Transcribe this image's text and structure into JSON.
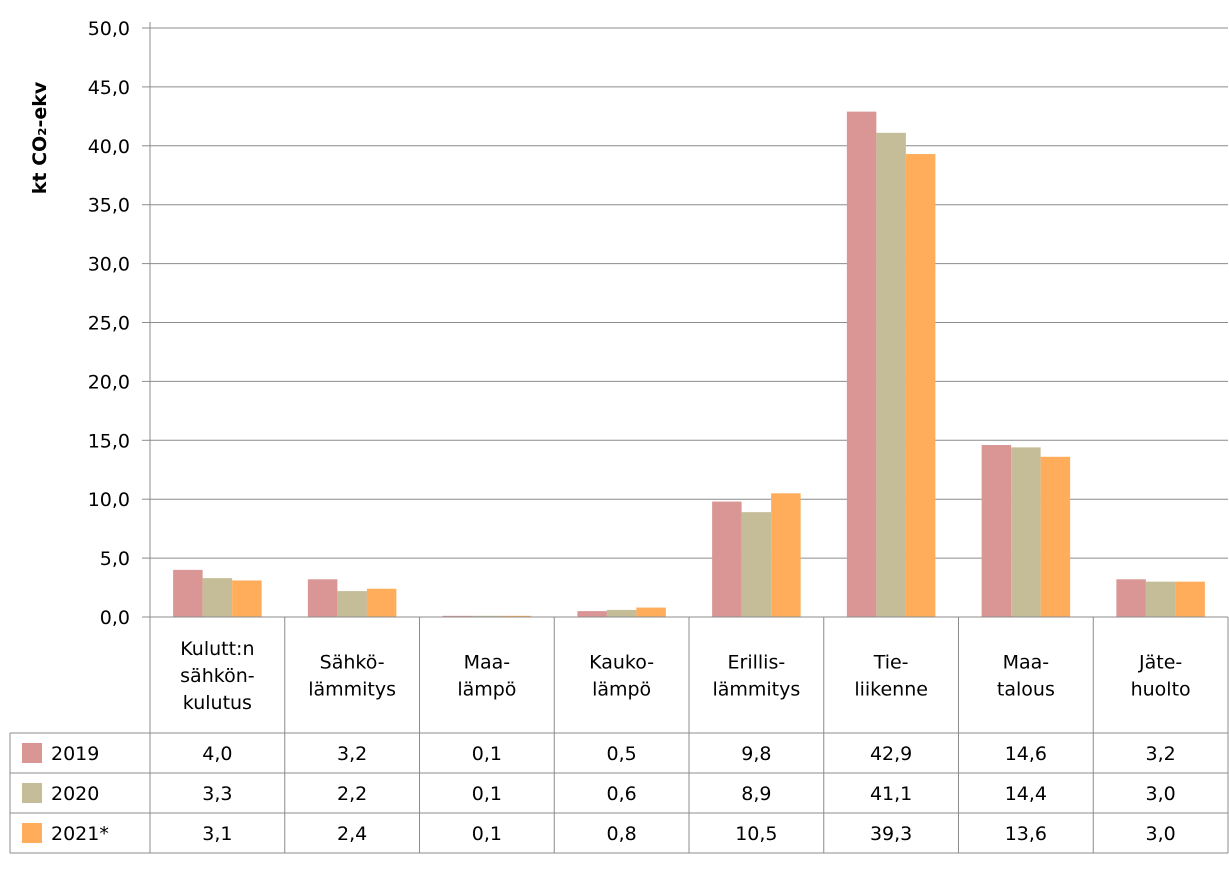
{
  "chart_data": {
    "type": "bar",
    "ylabel": "kt CO₂-ekv",
    "ylim": [
      0,
      50
    ],
    "ytick_step": 5,
    "yticks": [
      "0,0",
      "5,0",
      "10,0",
      "15,0",
      "20,0",
      "25,0",
      "30,0",
      "35,0",
      "40,0",
      "45,0",
      "50,0"
    ],
    "grid": true,
    "legend": "data-table",
    "categories": [
      [
        "Kulutt:n",
        "sähkön-",
        "kulutus"
      ],
      [
        "Sähkö-",
        "lämmitys"
      ],
      [
        "Maa-",
        "lämpö"
      ],
      [
        "Kauko-",
        "lämpö"
      ],
      [
        "Erillis-",
        "lämmitys"
      ],
      [
        "Tie-",
        "liikenne"
      ],
      [
        "Maa-",
        "talous"
      ],
      [
        "Jäte-",
        "huolto"
      ]
    ],
    "series": [
      {
        "name": "2019",
        "color": "#D99694",
        "values": [
          4.0,
          3.2,
          0.1,
          0.5,
          9.8,
          42.9,
          14.6,
          3.2
        ],
        "labels": [
          "4,0",
          "3,2",
          "0,1",
          "0,5",
          "9,8",
          "42,9",
          "14,6",
          "3,2"
        ]
      },
      {
        "name": "2020",
        "color": "#C4BD97",
        "values": [
          3.3,
          2.2,
          0.1,
          0.6,
          8.9,
          41.1,
          14.4,
          3.0
        ],
        "labels": [
          "3,3",
          "2,2",
          "0,1",
          "0,6",
          "8,9",
          "41,1",
          "14,4",
          "3,0"
        ]
      },
      {
        "name": "2021*",
        "color": "#FFAD5B",
        "values": [
          3.1,
          2.4,
          0.1,
          0.8,
          10.5,
          39.3,
          13.6,
          3.0
        ],
        "labels": [
          "3,1",
          "2,4",
          "0,1",
          "0,8",
          "10,5",
          "39,3",
          "13,6",
          "3,0"
        ]
      }
    ]
  }
}
